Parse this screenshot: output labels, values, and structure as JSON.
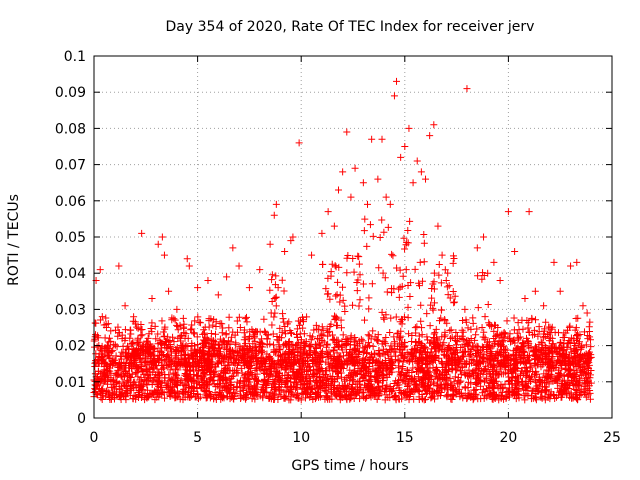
{
  "chart_data": {
    "type": "scatter",
    "title": "Day 354 of 2020, Rate Of TEC Index for receiver jerv",
    "xlabel": "GPS time / hours",
    "ylabel": "ROTI / TECUs",
    "xlim": [
      0,
      25
    ],
    "ylim": [
      0,
      0.1
    ],
    "xticks": [
      0,
      5,
      10,
      15,
      20,
      25
    ],
    "xtick_labels": [
      "0",
      "5",
      "10",
      "15",
      "20",
      "25"
    ],
    "yticks": [
      0,
      0.01,
      0.02,
      0.03,
      0.04,
      0.05,
      0.06,
      0.07,
      0.08,
      0.09,
      0.1
    ],
    "ytick_labels": [
      "0",
      "0.01",
      "0.02",
      "0.03",
      "0.04",
      "0.05",
      "0.06",
      "0.07",
      "0.08",
      "0.09",
      "0.1"
    ],
    "grid": true,
    "legend": "none",
    "marker": "+",
    "color": "#ff0000",
    "series": [
      {
        "name": "ROTI",
        "x": [
          0.1,
          0.3,
          0.4,
          0.6,
          1.2,
          1.5,
          2.0,
          2.3,
          2.8,
          3.1,
          3.3,
          3.4,
          3.6,
          4.0,
          4.5,
          4.6,
          5.0,
          5.5,
          6.0,
          6.4,
          6.7,
          7.0,
          7.5,
          8.0,
          8.5,
          8.7,
          8.8,
          9.2,
          9.5,
          9.6,
          9.9,
          10.5,
          11.0,
          11.3,
          11.6,
          11.8,
          12.0,
          12.2,
          12.4,
          12.6,
          13.0,
          13.2,
          13.4,
          13.7,
          13.9,
          14.1,
          14.3,
          14.5,
          14.6,
          14.8,
          15.0,
          15.2,
          15.4,
          15.6,
          15.8,
          16.0,
          16.2,
          16.4,
          16.6,
          16.8,
          17.0,
          17.4,
          17.9,
          18.0,
          18.5,
          18.8,
          19.0,
          19.3,
          19.6,
          20.0,
          20.3,
          20.8,
          21.0,
          21.3,
          21.7,
          22.2,
          22.5,
          23.0,
          23.3,
          23.6,
          23.8
        ],
        "y": [
          0.038,
          0.041,
          0.028,
          0.025,
          0.042,
          0.031,
          0.026,
          0.051,
          0.033,
          0.048,
          0.05,
          0.045,
          0.035,
          0.03,
          0.044,
          0.042,
          0.036,
          0.038,
          0.034,
          0.039,
          0.047,
          0.042,
          0.036,
          0.041,
          0.048,
          0.056,
          0.059,
          0.046,
          0.049,
          0.05,
          0.076,
          0.045,
          0.051,
          0.057,
          0.053,
          0.063,
          0.068,
          0.079,
          0.061,
          0.069,
          0.065,
          0.059,
          0.077,
          0.066,
          0.077,
          0.061,
          0.059,
          0.089,
          0.093,
          0.072,
          0.075,
          0.08,
          0.065,
          0.071,
          0.068,
          0.066,
          0.078,
          0.081,
          0.053,
          0.045,
          0.038,
          0.032,
          0.03,
          0.091,
          0.047,
          0.05,
          0.04,
          0.043,
          0.038,
          0.057,
          0.046,
          0.033,
          0.057,
          0.035,
          0.031,
          0.043,
          0.035,
          0.042,
          0.043,
          0.031,
          0.029
        ]
      }
    ],
    "dense_band": {
      "note": "dense background of many points across the day",
      "x_range": [
        0,
        24
      ],
      "y_typical_range": [
        0.005,
        0.025
      ]
    }
  }
}
